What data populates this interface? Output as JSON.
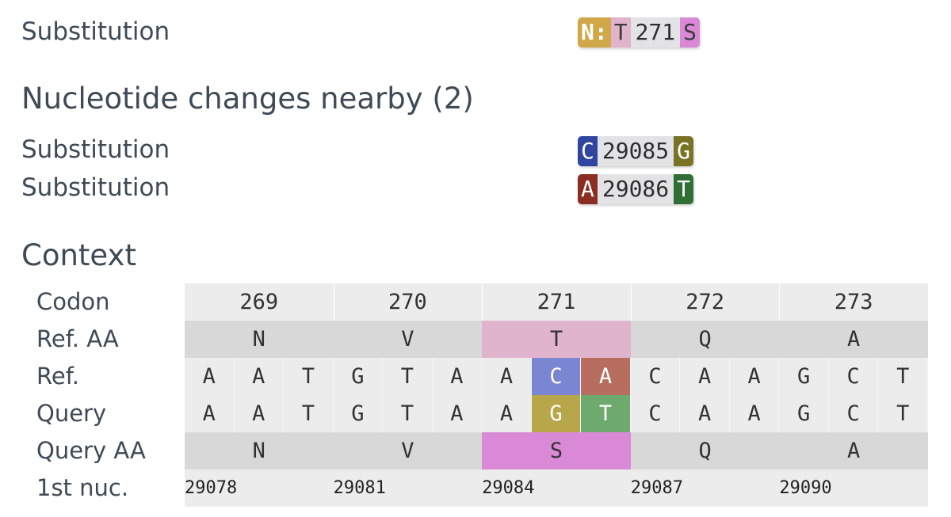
{
  "aa_substitution": {
    "label": "Substitution",
    "gene": "N:",
    "ref": "T",
    "pos": "271",
    "qry": "S",
    "colors": {
      "gene": "#d0a84a",
      "ref": "#e0b4cc",
      "qry": "#d989d6"
    }
  },
  "nearby": {
    "heading": "Nucleotide changes nearby (2)",
    "items": [
      {
        "label": "Substitution",
        "ref": "C",
        "pos": "29085",
        "qry": "G",
        "ref_color": "#2f45a0",
        "qry_color": "#7a7224"
      },
      {
        "label": "Substitution",
        "ref": "A",
        "pos": "29086",
        "qry": "T",
        "ref_color": "#8b2e22",
        "qry_color": "#2f6e35"
      }
    ]
  },
  "context": {
    "heading": "Context",
    "row_labels": [
      "Codon",
      "Ref. AA",
      "Ref.",
      "Query",
      "Query AA",
      "1st nuc."
    ],
    "codons": [
      "269",
      "270",
      "271",
      "272",
      "273"
    ],
    "ref_aa": [
      "N",
      "V",
      "T",
      "Q",
      "A"
    ],
    "query_aa": [
      "N",
      "V",
      "S",
      "Q",
      "A"
    ],
    "ref_nuc": [
      "A",
      "A",
      "T",
      "G",
      "T",
      "A",
      "A",
      "C",
      "A",
      "C",
      "A",
      "A",
      "G",
      "C",
      "T"
    ],
    "query_nuc": [
      "A",
      "A",
      "T",
      "G",
      "T",
      "A",
      "A",
      "G",
      "T",
      "C",
      "A",
      "A",
      "G",
      "C",
      "T"
    ],
    "first_nuc": [
      "29078",
      "29081",
      "29084",
      "29087",
      "29090"
    ],
    "highlight": {
      "ref_aa_codon_index": 2,
      "ref_aa_color": "#e0b4cc",
      "query_aa_color": "#d989d6",
      "ref_nuc_colors": {
        "7": "#7b86d2",
        "8": "#b86e5f"
      },
      "query_nuc_colors": {
        "7": "#b8a64a",
        "8": "#6eaa6e"
      }
    }
  }
}
